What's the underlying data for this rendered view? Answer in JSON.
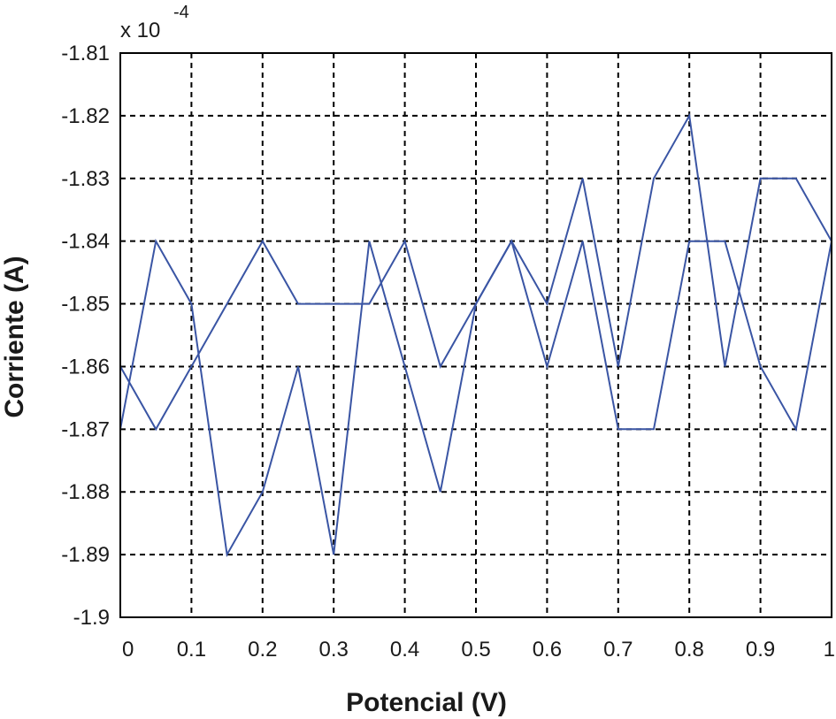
{
  "chart_data": {
    "type": "line",
    "title": "",
    "xlabel": "Potencial (V)",
    "ylabel": "Corriente (A)",
    "y_multiplier": {
      "base": "x 10",
      "exponent": "-4"
    },
    "xlim": [
      0,
      1
    ],
    "ylim": [
      -1.9,
      -1.81
    ],
    "x_ticks": [
      0,
      0.1,
      0.2,
      0.3,
      0.4,
      0.5,
      0.6,
      0.7,
      0.8,
      0.9,
      1
    ],
    "x_tick_labels": [
      "0",
      "0.1",
      "0.2",
      "0.3",
      "0.4",
      "0.5",
      "0.6",
      "0.7",
      "0.8",
      "0.9",
      "1"
    ],
    "y_ticks": [
      -1.81,
      -1.82,
      -1.83,
      -1.84,
      -1.85,
      -1.86,
      -1.87,
      -1.88,
      -1.89,
      -1.9
    ],
    "y_tick_labels": [
      "-1.81",
      "-1.82",
      "-1.83",
      "-1.84",
      "-1.85",
      "-1.86",
      "-1.87",
      "-1.88",
      "-1.89",
      "-1.9"
    ],
    "grid": true,
    "grid_style": "dashed",
    "line_color": "#3a55a4",
    "series": [
      {
        "x": [
          0,
          0.05,
          0.1,
          0.15,
          0.2,
          0.25,
          0.3,
          0.35,
          0.4,
          0.45,
          0.5,
          0.55,
          0.6,
          0.65,
          0.7,
          0.75,
          0.8,
          0.85,
          0.9,
          0.95,
          1
        ],
        "values": [
          -1.87,
          -1.84,
          -1.85,
          -1.89,
          -1.88,
          -1.86,
          -1.89,
          -1.84,
          -1.86,
          -1.88,
          -1.85,
          -1.84,
          -1.86,
          -1.84,
          -1.87,
          -1.87,
          -1.84,
          -1.84,
          -1.86,
          -1.87,
          -1.84
        ]
      },
      {
        "x": [
          0,
          0.05,
          0.1,
          0.15,
          0.2,
          0.25,
          0.3,
          0.35,
          0.4,
          0.45,
          0.5,
          0.55,
          0.6,
          0.65,
          0.7,
          0.75,
          0.8,
          0.85,
          0.9,
          0.95,
          1
        ],
        "values": [
          -1.86,
          -1.87,
          -1.86,
          -1.85,
          -1.84,
          -1.85,
          -1.85,
          -1.85,
          -1.84,
          -1.86,
          -1.85,
          -1.84,
          -1.85,
          -1.83,
          -1.86,
          -1.83,
          -1.82,
          -1.86,
          -1.83,
          -1.83,
          -1.84
        ]
      }
    ]
  }
}
